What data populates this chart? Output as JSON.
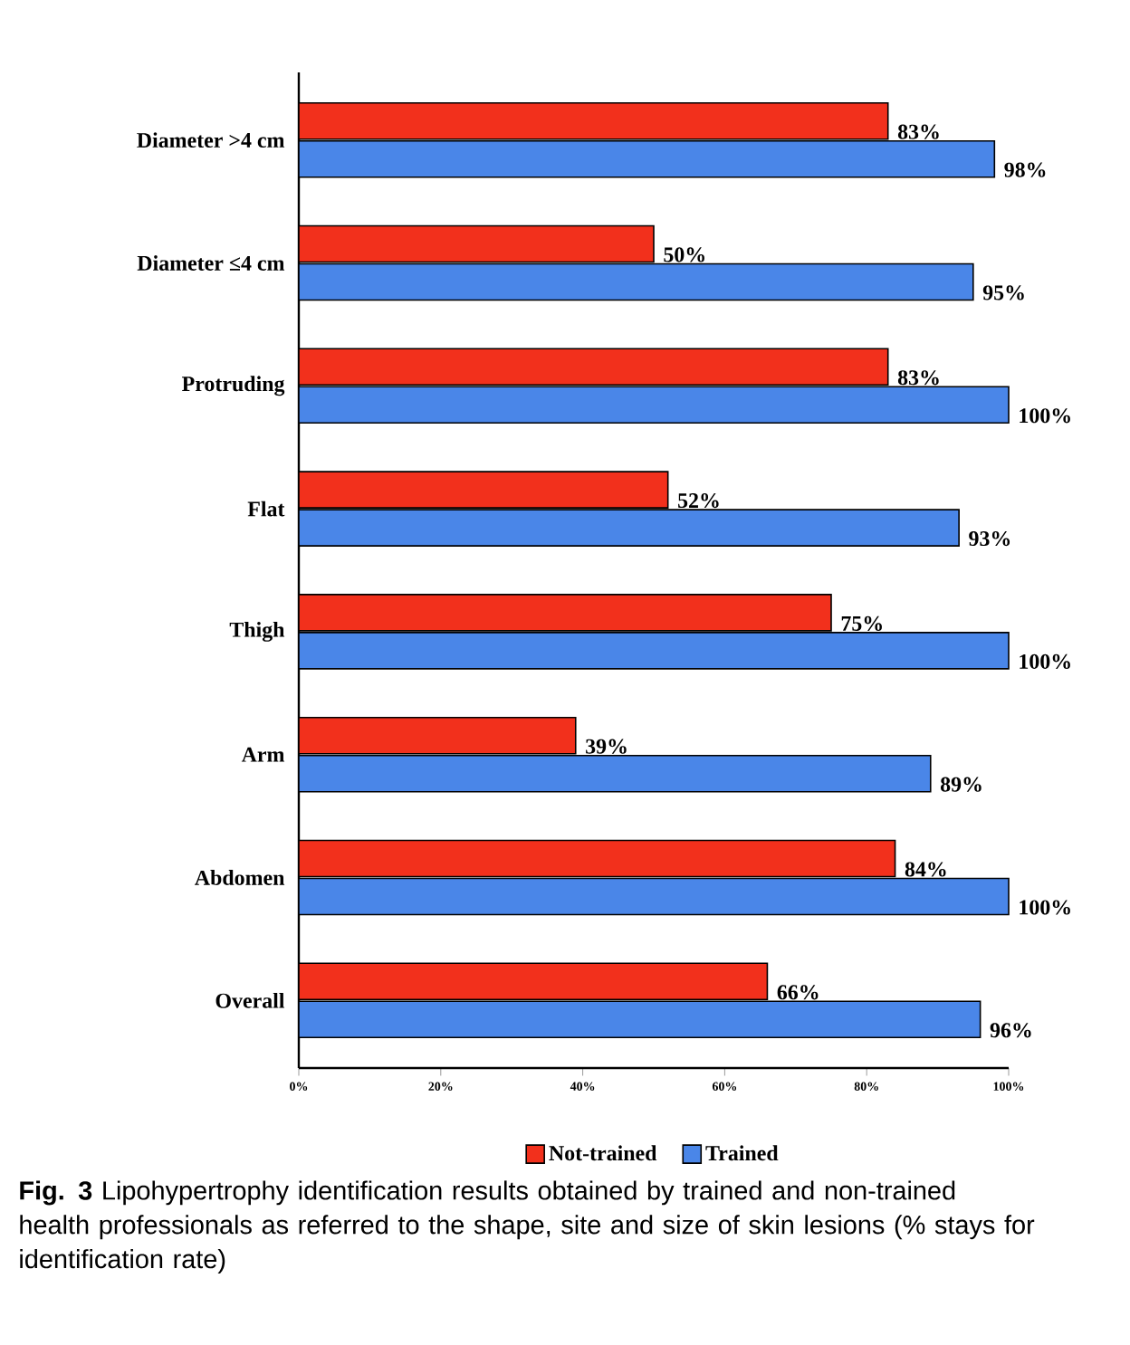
{
  "chart_data": {
    "type": "bar",
    "orientation": "horizontal",
    "categories": [
      "Diameter >4 cm",
      "Diameter ≤4 cm",
      "Protruding",
      "Flat",
      "Thigh",
      "Arm",
      "Abdomen",
      "Overall"
    ],
    "series": [
      {
        "name": "Not-trained",
        "color": "#f2301c",
        "values": [
          83,
          50,
          83,
          52,
          75,
          39,
          84,
          66
        ],
        "value_labels": [
          "83%",
          "50%",
          "83%",
          "52%",
          "75%",
          "39%",
          "84%",
          "66%"
        ]
      },
      {
        "name": "Trained",
        "color": "#4a86e8",
        "values": [
          98,
          95,
          100,
          93,
          100,
          89,
          100,
          96
        ],
        "value_labels": [
          "98%",
          "95%",
          "100%",
          "93%",
          "100%",
          "89%",
          "100%",
          "96%"
        ]
      }
    ],
    "xlim": [
      0,
      100
    ],
    "xticks": [
      {
        "value": 0,
        "label": "0%"
      },
      {
        "value": 20,
        "label": "20%"
      },
      {
        "value": 40,
        "label": "40%"
      },
      {
        "value": 60,
        "label": "60%"
      },
      {
        "value": 80,
        "label": "80%"
      },
      {
        "value": 100,
        "label": "100%"
      }
    ],
    "legend": "bottom",
    "grid": false,
    "annotations": [
      "**Fig. 3** Lipohypertrophy identification results obtained by trained and non-trained health professionals as referred to the shape, site and size of skin lesions (% stays for identification rate)"
    ]
  }
}
